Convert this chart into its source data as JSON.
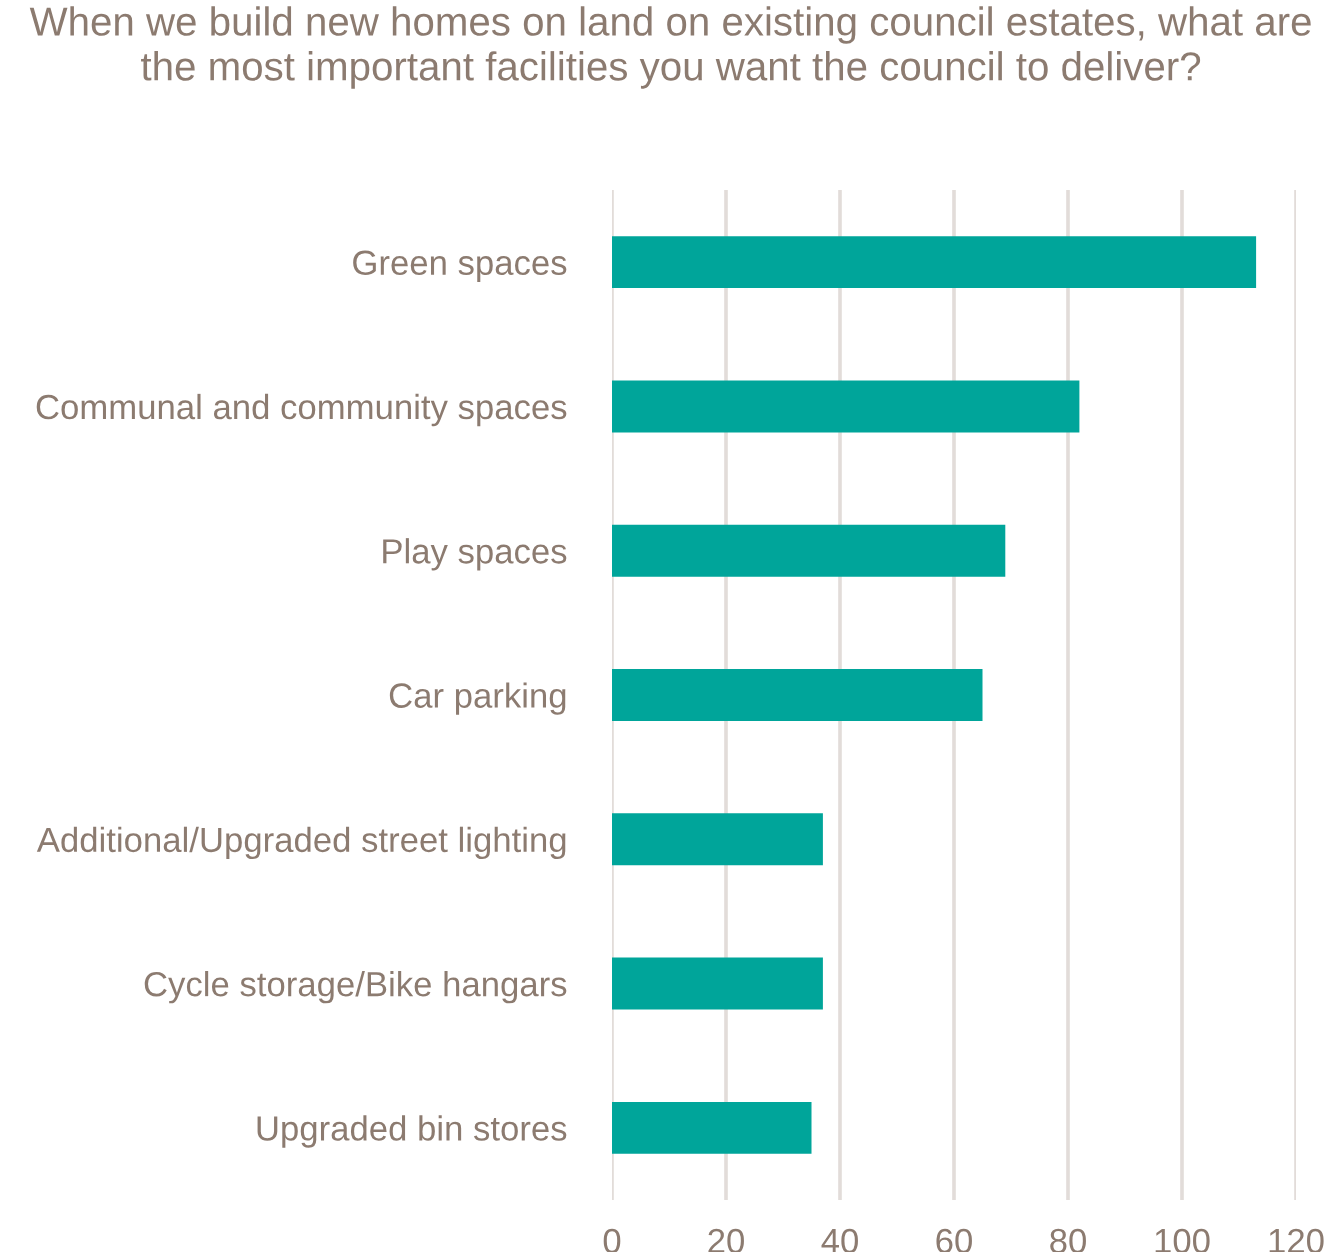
{
  "chart_data": {
    "type": "bar",
    "orientation": "horizontal",
    "title": "When we build new homes on land on existing council estates, what are the most important facilities you want the council to deliver?",
    "categories": [
      "Green spaces",
      "Communal and community spaces",
      "Play spaces",
      "Car parking",
      "Additional/Upgraded street lighting",
      "Cycle storage/Bike hangars",
      "Upgraded bin stores"
    ],
    "values": [
      113,
      82,
      69,
      65,
      37,
      37,
      35
    ],
    "color": "#00a59a",
    "xlim": [
      0,
      120
    ],
    "xticks": [
      0,
      20,
      40,
      60,
      80,
      100,
      120
    ],
    "grid": "x"
  }
}
